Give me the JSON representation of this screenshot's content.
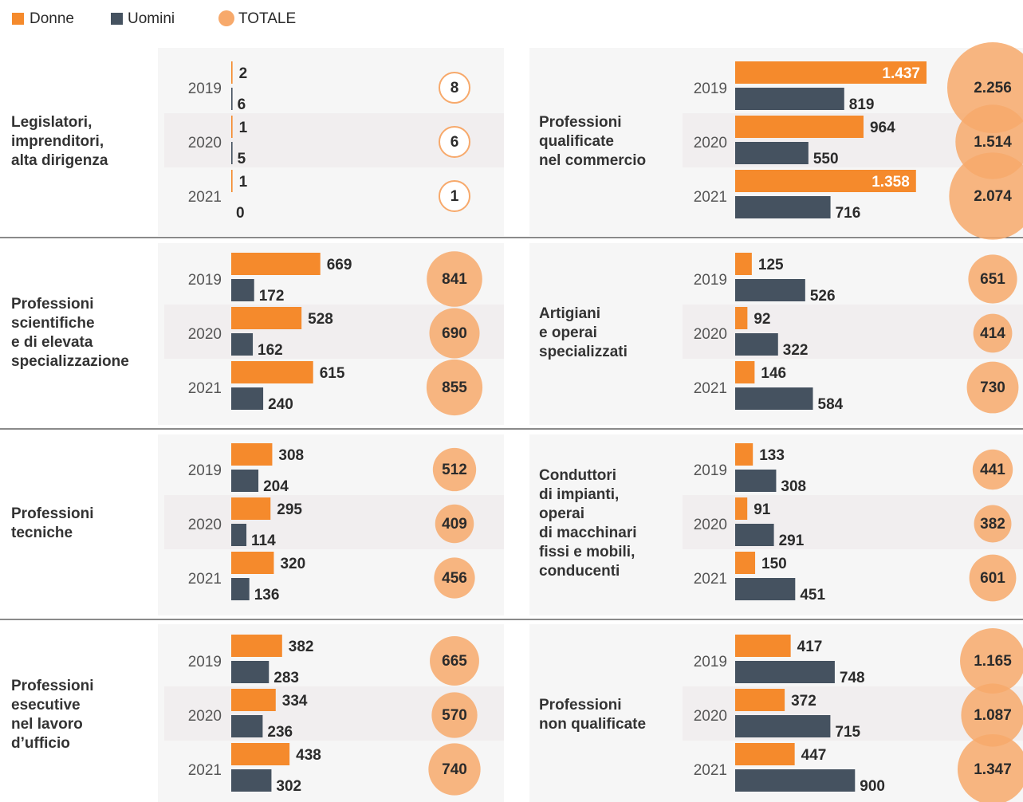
{
  "chart_data": {
    "type": "bar",
    "categories": [
      "2019",
      "2020",
      "2021"
    ],
    "series": [
      {
        "name": "Donne",
        "color": "#f58a2c"
      },
      {
        "name": "Uomini",
        "color": "#455260"
      },
      {
        "name": "TOTALE",
        "color": "#f7a96b"
      }
    ],
    "panels": [
      {
        "title": [
          "Legislatori,",
          "imprenditori,",
          "alta dirigenza"
        ],
        "series": [
          {
            "values": [
              2,
              1,
              1
            ]
          },
          {
            "values": [
              6,
              5,
              0
            ]
          },
          {
            "values": [
              8,
              6,
              1
            ]
          }
        ]
      },
      {
        "title": [
          "Professioni",
          "qualificate",
          "nel commercio"
        ],
        "series": [
          {
            "values": [
              1437,
              964,
              1358
            ],
            "value_labels": [
              "1.437",
              "964",
              "1.358"
            ]
          },
          {
            "values": [
              819,
              550,
              716
            ]
          },
          {
            "values": [
              2256,
              1514,
              2074
            ],
            "value_labels": [
              "2.256",
              "1.514",
              "2.074"
            ]
          }
        ]
      },
      {
        "title": [
          "Professioni",
          "scientifiche",
          "e di elevata",
          "specializzazione"
        ],
        "series": [
          {
            "values": [
              669,
              528,
              615
            ]
          },
          {
            "values": [
              172,
              162,
              240
            ]
          },
          {
            "values": [
              841,
              690,
              855
            ]
          }
        ]
      },
      {
        "title": [
          "Artigiani",
          "e operai",
          "specializzati"
        ],
        "series": [
          {
            "values": [
              125,
              92,
              146
            ]
          },
          {
            "values": [
              526,
              322,
              584
            ]
          },
          {
            "values": [
              651,
              414,
              730
            ]
          }
        ]
      },
      {
        "title": [
          "Professioni",
          "tecniche"
        ],
        "series": [
          {
            "values": [
              308,
              295,
              320
            ]
          },
          {
            "values": [
              204,
              114,
              136
            ]
          },
          {
            "values": [
              512,
              409,
              456
            ]
          }
        ]
      },
      {
        "title": [
          "Conduttori",
          "di impianti,",
          "operai",
          "di macchinari",
          "fissi e mobili,",
          "conducenti"
        ],
        "series": [
          {
            "values": [
              133,
              91,
              150
            ]
          },
          {
            "values": [
              308,
              291,
              451
            ]
          },
          {
            "values": [
              441,
              382,
              601
            ]
          }
        ]
      },
      {
        "title": [
          "Professioni",
          "esecutive",
          "nel lavoro",
          "d’ufficio"
        ],
        "series": [
          {
            "values": [
              382,
              334,
              438
            ]
          },
          {
            "values": [
              283,
              236,
              302
            ]
          },
          {
            "values": [
              665,
              570,
              740
            ]
          }
        ]
      },
      {
        "title": [
          "Professioni",
          "non qualificate"
        ],
        "series": [
          {
            "values": [
              417,
              372,
              447
            ]
          },
          {
            "values": [
              748,
              715,
              900
            ]
          },
          {
            "values": [
              1165,
              1087,
              1347
            ],
            "value_labels": [
              "1.165",
              "1.087",
              "1.347"
            ]
          }
        ]
      }
    ]
  }
}
